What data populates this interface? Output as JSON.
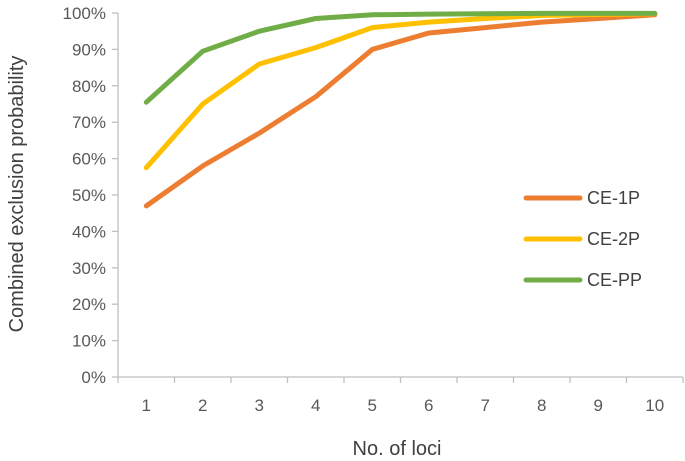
{
  "chart_data": {
    "type": "line",
    "title": "",
    "xlabel": "No. of loci",
    "ylabel": "Combined exclusion probability",
    "categories": [
      "1",
      "2",
      "3",
      "4",
      "5",
      "6",
      "7",
      "8",
      "9",
      "10"
    ],
    "ylim": [
      0,
      100
    ],
    "yticks": [
      0,
      10,
      20,
      30,
      40,
      50,
      60,
      70,
      80,
      90,
      100
    ],
    "ytick_labels": [
      "0%",
      "10%",
      "20%",
      "30%",
      "40%",
      "50%",
      "60%",
      "70%",
      "80%",
      "90%",
      "100%"
    ],
    "grid": false,
    "legend_position": "right",
    "series": [
      {
        "name": "CE-1P",
        "color": "#ED7D31",
        "values": [
          47,
          58,
          67,
          77,
          90,
          94.5,
          96,
          97.5,
          98.5,
          99.5
        ]
      },
      {
        "name": "CE-2P",
        "color": "#FFC000",
        "values": [
          57.5,
          75,
          86,
          90.5,
          96,
          97.5,
          98.5,
          99.3,
          99.6,
          99.8
        ]
      },
      {
        "name": "CE-PP",
        "color": "#70AD47",
        "values": [
          75.5,
          89.5,
          95,
          98.5,
          99.5,
          99.7,
          99.8,
          99.9,
          99.9,
          99.9
        ]
      }
    ]
  }
}
